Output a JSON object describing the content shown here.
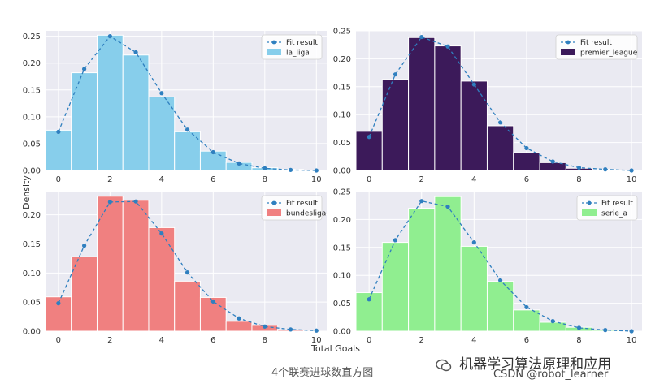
{
  "figure": {
    "ylabel": "Density",
    "xlabel": "Total Goals",
    "caption": "4个联赛进球数直方图",
    "watermark_title": "机器学习算法原理和应用",
    "watermark_sub": "CSDN @robot_learner",
    "fit_color": "#2f7fbf"
  },
  "chart_data": [
    {
      "type": "bar",
      "panel": "top-left",
      "xlim": [
        -0.5,
        10.4
      ],
      "ylim": [
        0,
        0.26
      ],
      "xticks": [
        0,
        2,
        4,
        6,
        8,
        10
      ],
      "yticks": [
        0.0,
        0.05,
        0.1,
        0.15,
        0.2,
        0.25
      ],
      "bar_color": "#87ceeb",
      "legend": "top-right",
      "grid": true,
      "series": [
        {
          "name": "la_liga",
          "type": "histogram",
          "bins": [
            [
              -0.5,
              0.5
            ],
            [
              0.5,
              1.5
            ],
            [
              1.5,
              2.5
            ],
            [
              2.5,
              3.5
            ],
            [
              3.5,
              4.5
            ],
            [
              4.5,
              5.5
            ],
            [
              5.5,
              6.5
            ],
            [
              6.5,
              7.5
            ],
            [
              7.5,
              8.5
            ],
            [
              8.5,
              9.5
            ]
          ],
          "values": [
            0.075,
            0.182,
            0.252,
            0.215,
            0.137,
            0.072,
            0.036,
            0.015,
            0.005,
            0.002
          ]
        },
        {
          "name": "Fit result",
          "type": "line",
          "x": [
            0,
            1,
            2,
            3,
            4,
            5,
            6,
            7,
            8,
            9,
            10
          ],
          "values": [
            0.072,
            0.189,
            0.25,
            0.22,
            0.144,
            0.076,
            0.034,
            0.013,
            0.004,
            0.001,
            0.0
          ]
        }
      ]
    },
    {
      "type": "bar",
      "panel": "top-right",
      "xlim": [
        -0.5,
        10.4
      ],
      "ylim": [
        0,
        0.25
      ],
      "xticks": [
        0,
        2,
        4,
        6,
        8,
        10
      ],
      "yticks": [
        0.0,
        0.05,
        0.1,
        0.15,
        0.2,
        0.25
      ],
      "bar_color": "#3c1a5a",
      "legend": "top-right",
      "grid": true,
      "series": [
        {
          "name": "premier_league",
          "type": "histogram",
          "bins": [
            [
              -0.5,
              0.5
            ],
            [
              0.5,
              1.5
            ],
            [
              1.5,
              2.5
            ],
            [
              2.5,
              3.5
            ],
            [
              3.5,
              4.5
            ],
            [
              4.5,
              5.5
            ],
            [
              5.5,
              6.5
            ],
            [
              6.5,
              7.5
            ],
            [
              7.5,
              8.5
            ],
            [
              8.5,
              9.5
            ]
          ],
          "values": [
            0.07,
            0.163,
            0.238,
            0.223,
            0.16,
            0.08,
            0.032,
            0.014,
            0.004,
            0.002
          ]
        },
        {
          "name": "Fit result",
          "type": "line",
          "x": [
            0,
            1,
            2,
            3,
            4,
            5,
            6,
            7,
            8,
            9,
            10
          ],
          "values": [
            0.06,
            0.172,
            0.239,
            0.222,
            0.154,
            0.086,
            0.04,
            0.016,
            0.005,
            0.002,
            0.0
          ]
        }
      ]
    },
    {
      "type": "bar",
      "panel": "bottom-left",
      "xlim": [
        -0.5,
        10.4
      ],
      "ylim": [
        0,
        0.24
      ],
      "xticks": [
        0,
        2,
        4,
        6,
        8,
        10
      ],
      "yticks": [
        0.0,
        0.05,
        0.1,
        0.15,
        0.2
      ],
      "bar_color": "#f08080",
      "legend": "top-right",
      "grid": true,
      "series": [
        {
          "name": "bundesliga",
          "type": "histogram",
          "bins": [
            [
              -0.5,
              0.5
            ],
            [
              0.5,
              1.5
            ],
            [
              1.5,
              2.5
            ],
            [
              2.5,
              3.5
            ],
            [
              3.5,
              4.5
            ],
            [
              4.5,
              5.5
            ],
            [
              5.5,
              6.5
            ],
            [
              6.5,
              7.5
            ],
            [
              7.5,
              8.5
            ],
            [
              8.5,
              9.5
            ]
          ],
          "values": [
            0.059,
            0.128,
            0.232,
            0.225,
            0.178,
            0.086,
            0.058,
            0.017,
            0.01,
            0.002
          ]
        },
        {
          "name": "Fit result",
          "type": "line",
          "x": [
            0,
            1,
            2,
            3,
            4,
            5,
            6,
            7,
            8,
            9,
            10
          ],
          "values": [
            0.048,
            0.147,
            0.222,
            0.223,
            0.168,
            0.101,
            0.051,
            0.022,
            0.008,
            0.003,
            0.001
          ]
        }
      ]
    },
    {
      "type": "bar",
      "panel": "bottom-right",
      "xlim": [
        -0.5,
        10.4
      ],
      "ylim": [
        0,
        0.25
      ],
      "xticks": [
        0,
        2,
        4,
        6,
        8,
        10
      ],
      "yticks": [
        0.0,
        0.05,
        0.1,
        0.15,
        0.2,
        0.25
      ],
      "bar_color": "#90ee90",
      "legend": "top-right",
      "grid": true,
      "series": [
        {
          "name": "serie_a",
          "type": "histogram",
          "bins": [
            [
              -0.5,
              0.5
            ],
            [
              0.5,
              1.5
            ],
            [
              1.5,
              2.5
            ],
            [
              2.5,
              3.5
            ],
            [
              3.5,
              4.5
            ],
            [
              4.5,
              5.5
            ],
            [
              5.5,
              6.5
            ],
            [
              6.5,
              7.5
            ],
            [
              7.5,
              8.5
            ],
            [
              8.5,
              9.5
            ]
          ],
          "values": [
            0.069,
            0.159,
            0.22,
            0.241,
            0.152,
            0.089,
            0.038,
            0.016,
            0.007,
            0.002
          ]
        },
        {
          "name": "Fit result",
          "type": "line",
          "x": [
            0,
            1,
            2,
            3,
            4,
            5,
            6,
            7,
            8,
            9,
            10
          ],
          "values": [
            0.057,
            0.163,
            0.233,
            0.223,
            0.159,
            0.091,
            0.043,
            0.018,
            0.006,
            0.002,
            0.0
          ]
        }
      ]
    }
  ]
}
